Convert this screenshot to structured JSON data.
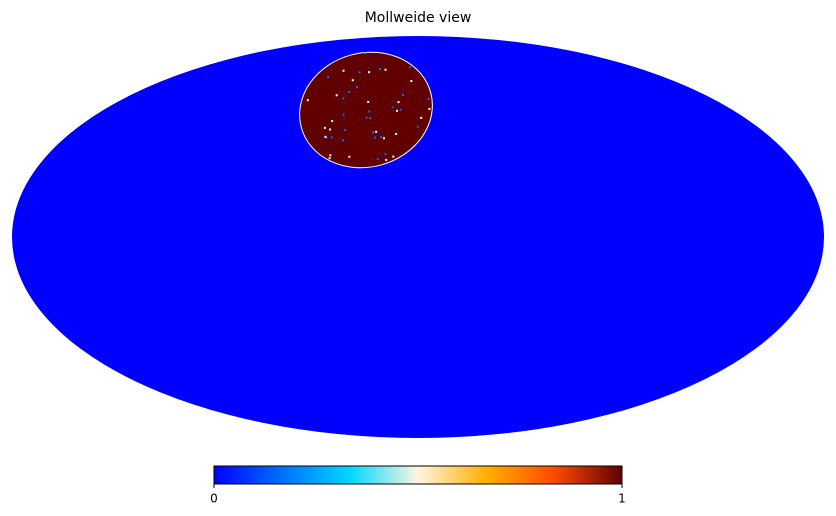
{
  "chart_data": {
    "type": "mollweide",
    "title": "Mollweide view",
    "colorbar_lim": [
      0,
      1
    ],
    "colorbar_ticks": [
      0,
      1
    ],
    "colormap": [
      "#0000ff",
      "#0070ff",
      "#00d8ff",
      "#fff4e0",
      "#ffb000",
      "#ff4a00",
      "#600000"
    ]
  }
}
